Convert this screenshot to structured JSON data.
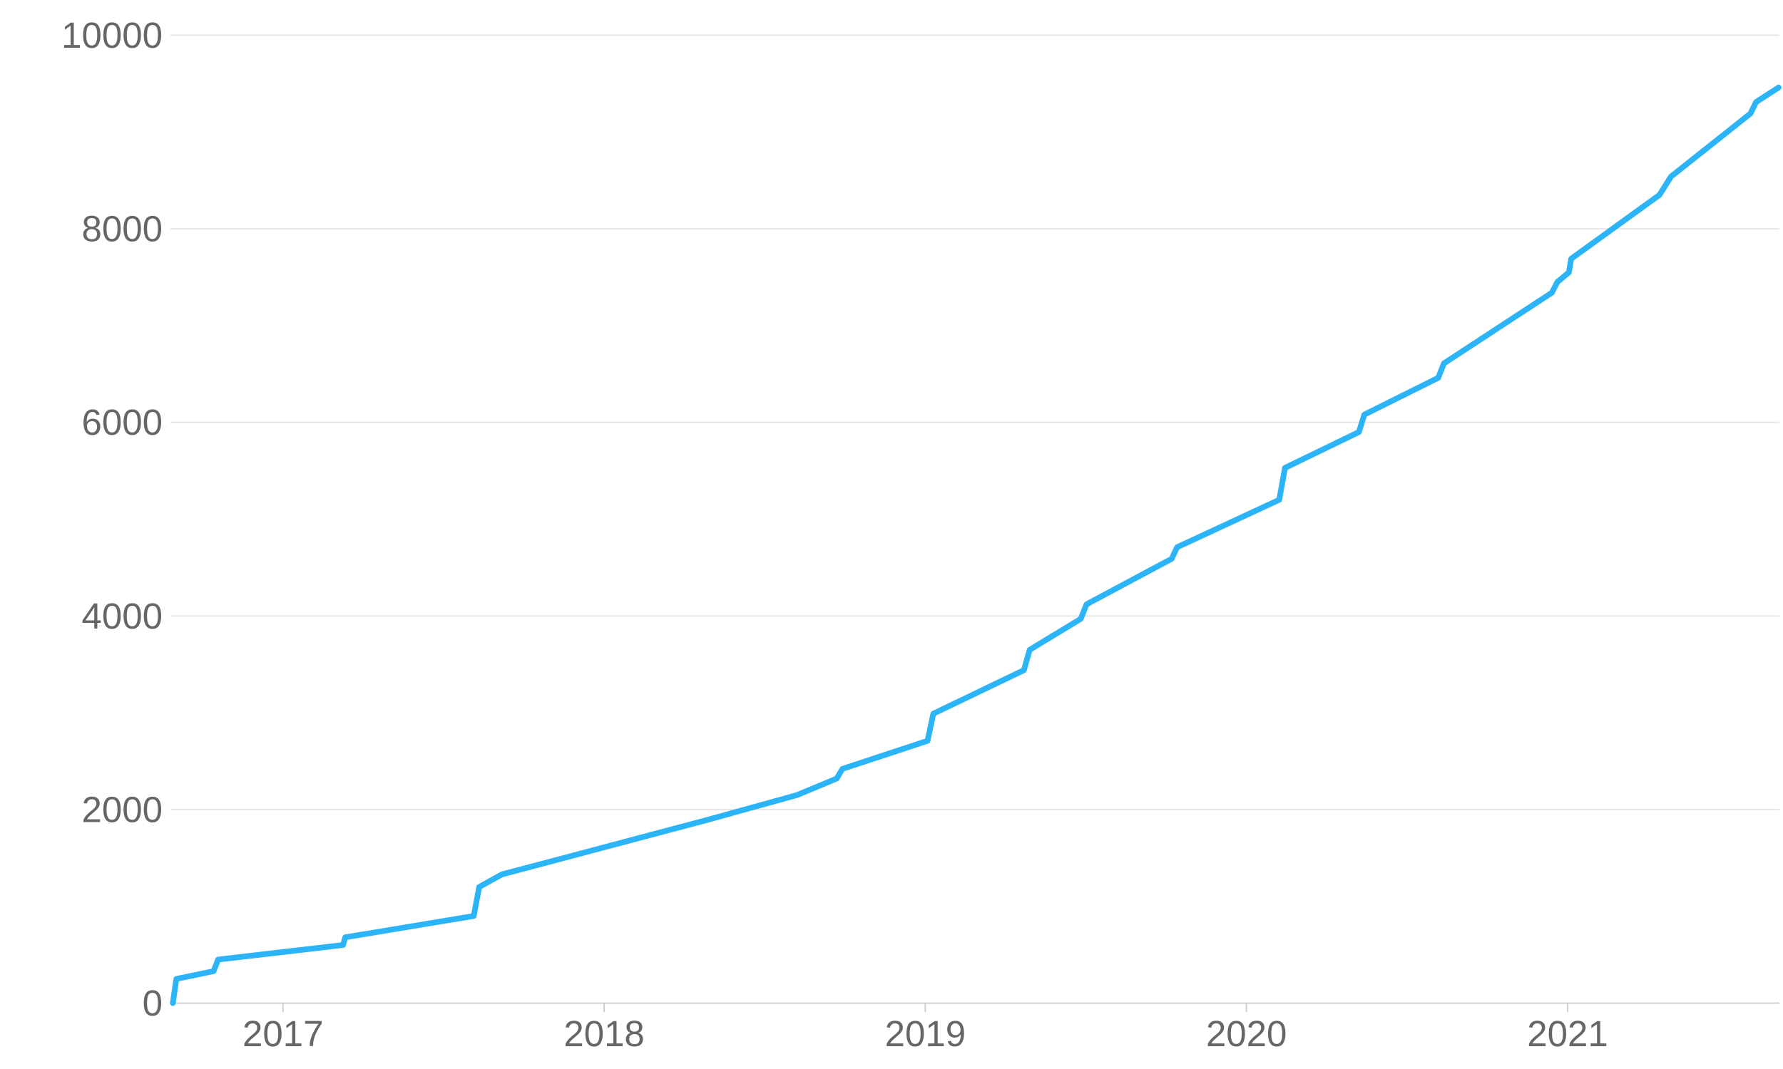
{
  "chart_data": {
    "type": "line",
    "x": [
      2016.657,
      2016.668,
      2016.784,
      2016.798,
      2017.187,
      2017.194,
      2017.594,
      2017.611,
      2017.682,
      2018.318,
      2018.601,
      2018.724,
      2018.742,
      2019.007,
      2019.025,
      2019.307,
      2019.325,
      2019.484,
      2019.502,
      2019.767,
      2019.784,
      2020.102,
      2020.12,
      2020.35,
      2020.367,
      2020.597,
      2020.615,
      2020.721,
      2020.951,
      2020.968,
      2021.004,
      2021.011,
      2021.286,
      2021.322,
      2021.569,
      2021.587,
      2021.657
    ],
    "series": [
      {
        "color": "#2bb4f7",
        "values": [
          0,
          250,
          330,
          450,
          600,
          680,
          900,
          1200,
          1330,
          1890,
          2150,
          2320,
          2420,
          2710,
          2990,
          3440,
          3650,
          3970,
          4120,
          4590,
          4710,
          5200,
          5530,
          5900,
          6080,
          6460,
          6610,
          6840,
          7340,
          7450,
          7550,
          7690,
          8350,
          8540,
          9190,
          9310,
          9460
        ]
      }
    ],
    "xlim": [
      2016.65,
      2021.66
    ],
    "xticks": [
      2017,
      2018,
      2019,
      2020,
      2021
    ],
    "ylim": [
      0,
      10000
    ],
    "yticks": [
      0,
      2000,
      4000,
      6000,
      8000,
      10000
    ],
    "grid": true
  }
}
